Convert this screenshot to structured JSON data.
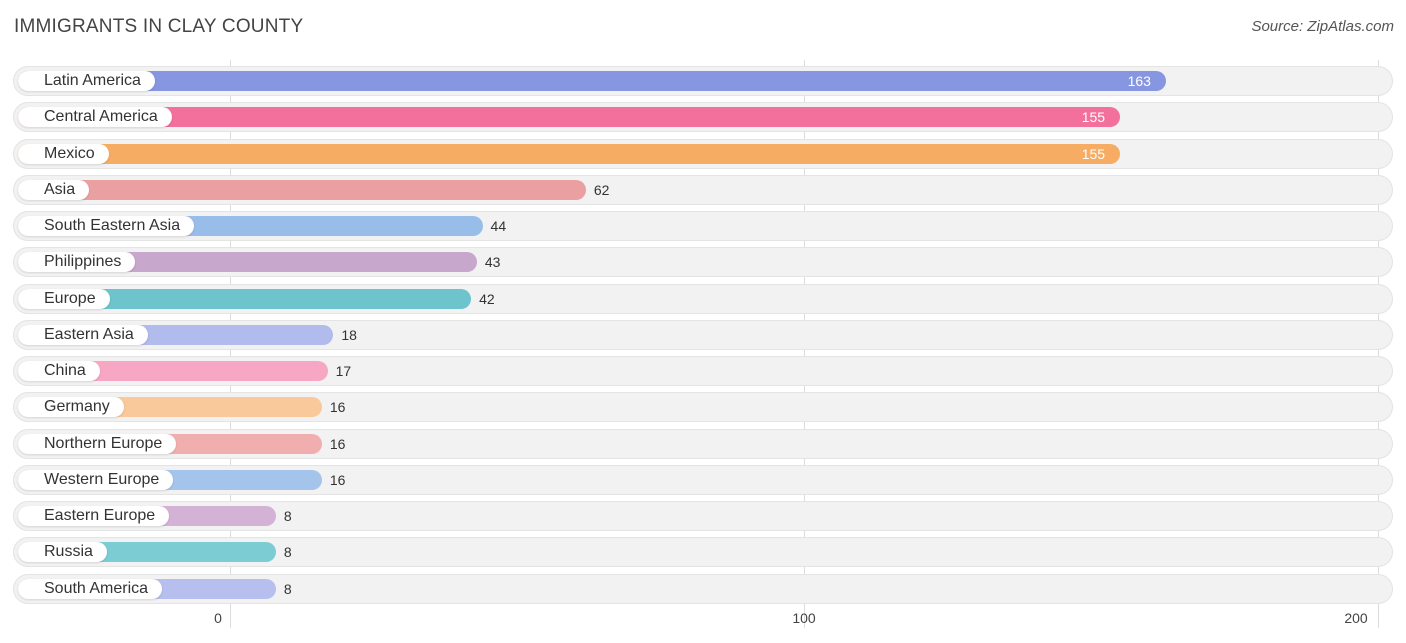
{
  "header": {
    "title": "IMMIGRANTS IN CLAY COUNTY",
    "source": "Source: ZipAtlas.com"
  },
  "chart_data": {
    "type": "bar",
    "orientation": "horizontal",
    "title": "IMMIGRANTS IN CLAY COUNTY",
    "xlim": [
      0,
      200
    ],
    "ticks": [
      0,
      100,
      200
    ],
    "grid": true,
    "categories": [
      "Latin America",
      "Central America",
      "Mexico",
      "Asia",
      "South Eastern Asia",
      "Philippines",
      "Europe",
      "Eastern Asia",
      "China",
      "Germany",
      "Northern Europe",
      "Western Europe",
      "Eastern Europe",
      "Russia",
      "South America"
    ],
    "values": [
      163,
      155,
      155,
      62,
      44,
      43,
      42,
      18,
      17,
      16,
      16,
      16,
      8,
      8,
      8
    ],
    "colors": [
      "#8796e0",
      "#f2709b",
      "#f6ac63",
      "#eaa0a0",
      "#98bde8",
      "#c7a7cc",
      "#6ec4cc",
      "#b1bbec",
      "#f7a7c3",
      "#f9c89b",
      "#f1aeae",
      "#a5c4ec",
      "#d3b2d6",
      "#7ccdd3",
      "#b7bfef"
    ]
  }
}
